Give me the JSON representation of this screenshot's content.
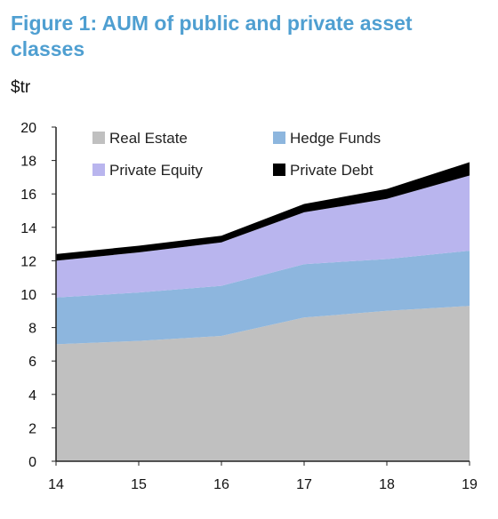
{
  "title": "Figure 1: AUM of public and private asset classes",
  "unit_label": "$tr",
  "chart_data": {
    "type": "area",
    "stacked": true,
    "x": [
      "14",
      "15",
      "16",
      "17",
      "18",
      "19"
    ],
    "ylim": [
      0,
      20
    ],
    "yticks": [
      0,
      2,
      4,
      6,
      8,
      10,
      12,
      14,
      16,
      18,
      20
    ],
    "grid": false,
    "legend_placement": "top",
    "series": [
      {
        "name": "Real Estate",
        "color": "#c0c0c0",
        "values": [
          7.0,
          7.2,
          7.5,
          8.6,
          9.0,
          9.3
        ]
      },
      {
        "name": "Hedge Funds",
        "color": "#8db6de",
        "values": [
          2.8,
          2.9,
          3.0,
          3.2,
          3.1,
          3.3
        ]
      },
      {
        "name": "Private Equity",
        "color": "#b9b5ee",
        "values": [
          2.2,
          2.4,
          2.6,
          3.1,
          3.6,
          4.5
        ]
      },
      {
        "name": "Private Debt",
        "color": "#000000",
        "values": [
          0.4,
          0.4,
          0.4,
          0.5,
          0.6,
          0.8
        ]
      }
    ]
  }
}
